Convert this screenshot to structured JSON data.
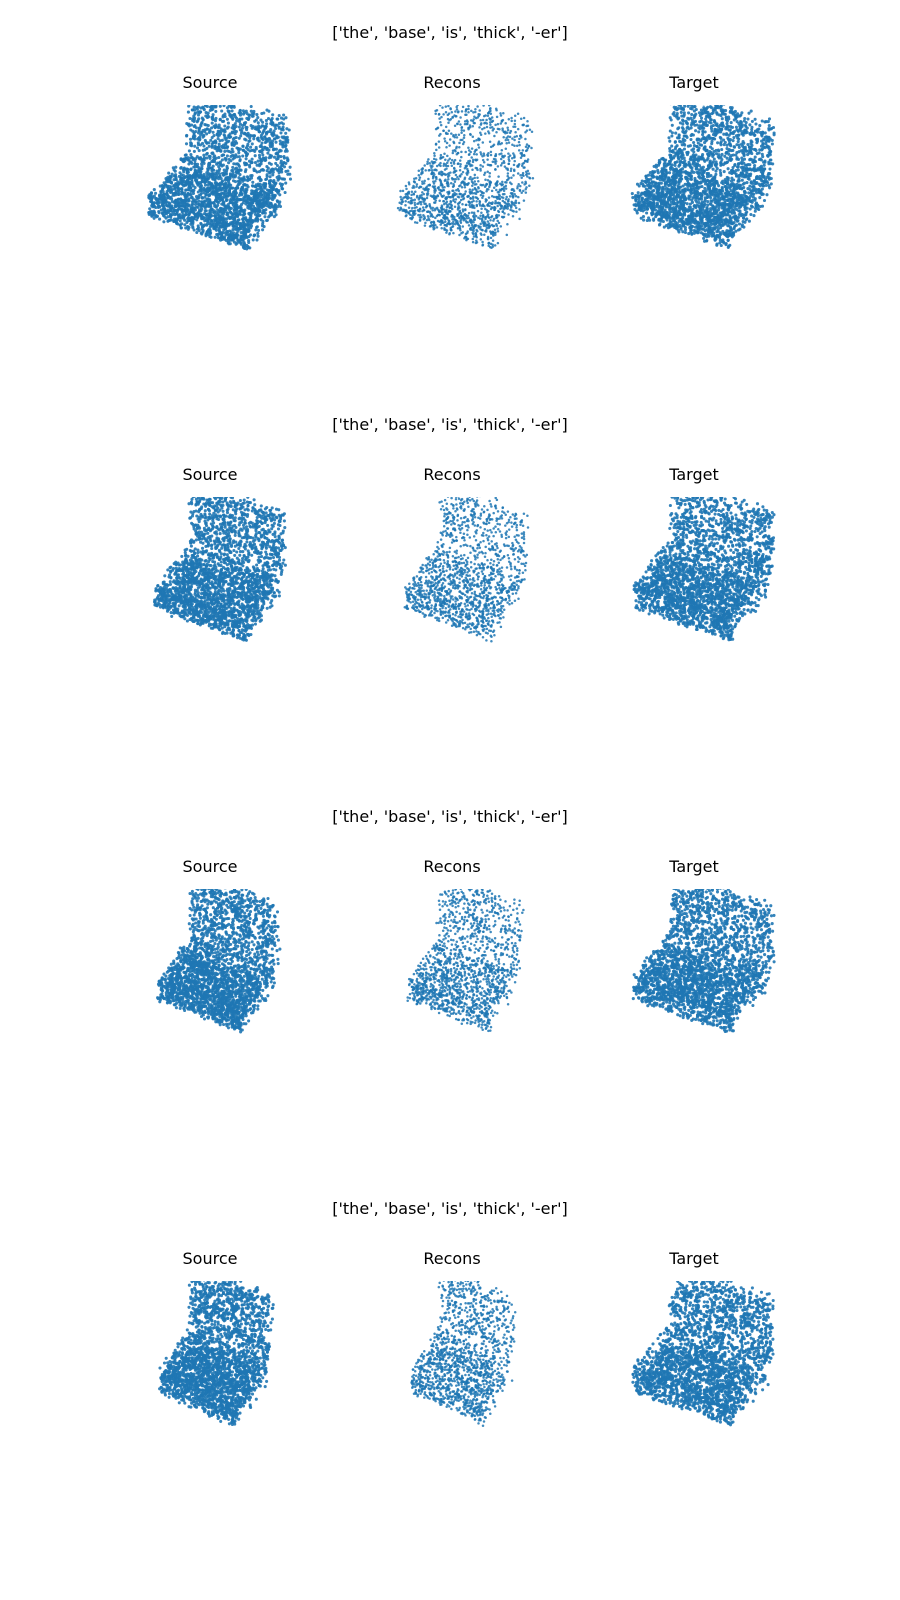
{
  "rows": [
    {
      "caption": "['the', 'base', 'is', 'thick', '-er']",
      "panels": [
        {
          "label": "Source",
          "shape": "sofa-dense",
          "variant": 0
        },
        {
          "label": "Recons",
          "shape": "sofa-sparse",
          "variant": 0
        },
        {
          "label": "Target",
          "shape": "sofa-dense-thick",
          "variant": 0
        }
      ]
    },
    {
      "caption": "['the', 'base', 'is', 'thick', '-er']",
      "panels": [
        {
          "label": "Source",
          "shape": "sofa-dense",
          "variant": 1
        },
        {
          "label": "Recons",
          "shape": "sofa-sparse",
          "variant": 1
        },
        {
          "label": "Target",
          "shape": "sofa-dense-thick",
          "variant": 0
        }
      ]
    },
    {
      "caption": "['the', 'base', 'is', 'thick', '-er']",
      "panels": [
        {
          "label": "Source",
          "shape": "sofa-dense",
          "variant": 2
        },
        {
          "label": "Recons",
          "shape": "sofa-sparse",
          "variant": 2
        },
        {
          "label": "Target",
          "shape": "sofa-dense-thick",
          "variant": 0
        }
      ]
    },
    {
      "caption": "['the', 'base', 'is', 'thick', '-er']",
      "panels": [
        {
          "label": "Source",
          "shape": "sofa-dense",
          "variant": 3
        },
        {
          "label": "Recons",
          "shape": "sofa-sparse",
          "variant": 3
        },
        {
          "label": "Target",
          "shape": "sofa-dense-thick",
          "variant": 0
        }
      ]
    }
  ],
  "colors": {
    "points": "#1f77b4",
    "background": "#ffffff"
  }
}
